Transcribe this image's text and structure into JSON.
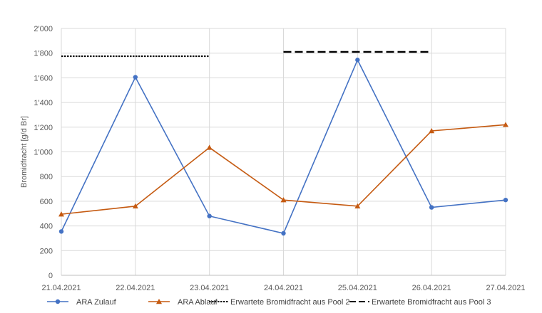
{
  "chart_data": {
    "type": "line",
    "title": "",
    "xlabel": "",
    "ylabel": "Bromidfracht [g/d Br]",
    "x": [
      "21.04.2021",
      "22.04.2021",
      "23.04.2021",
      "24.04.2021",
      "25.04.2021",
      "26.04.2021",
      "27.04.2021"
    ],
    "ylim": [
      0,
      2000
    ],
    "yticks": [
      0,
      200,
      400,
      600,
      800,
      1000,
      1200,
      1400,
      1600,
      1800,
      2000
    ],
    "ytick_labels": [
      "0",
      "200",
      "400",
      "600",
      "800",
      "1'000",
      "1'200",
      "1'400",
      "1'600",
      "1'800",
      "2'000"
    ],
    "grid": "horizontal and vertical",
    "legend_position": "bottom",
    "series": [
      {
        "name": "ARA Zulauf",
        "color": "#4472C4",
        "marker": "circle",
        "line_style": "solid",
        "values": [
          355,
          1605,
          480,
          340,
          1745,
          550,
          610
        ]
      },
      {
        "name": "ARA Ablauf",
        "color": "#C55A11",
        "marker": "triangle",
        "line_style": "solid",
        "values": [
          495,
          560,
          1035,
          610,
          560,
          1170,
          1220
        ]
      },
      {
        "name": "Erwartete Bromidfracht aus Pool 2",
        "color": "#000000",
        "marker": "none",
        "line_style": "dotted",
        "x_start": "21.04.2021",
        "x_end": "23.04.2021",
        "value": 1775
      },
      {
        "name": "Erwartete Bromidfracht aus Pool 3",
        "color": "#000000",
        "marker": "none",
        "line_style": "dashed",
        "x_start": "24.04.2021",
        "x_end": "26.04.2021",
        "value": 1810
      }
    ]
  }
}
